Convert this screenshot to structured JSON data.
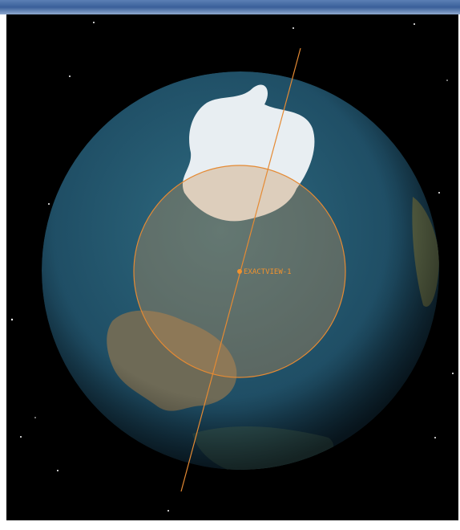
{
  "satellite": {
    "label": "EXACTVIEW-1"
  }
}
